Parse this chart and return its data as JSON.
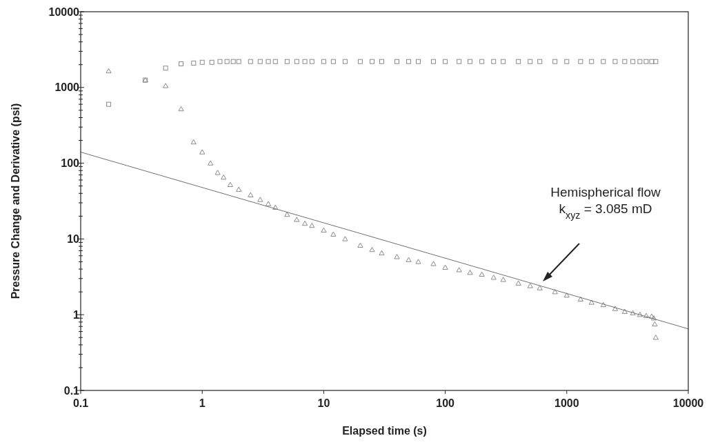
{
  "chart_data": {
    "type": "scatter",
    "xlabel": "Elapsed time (s)",
    "ylabel": "Pressure Change and Derivative (psi)",
    "log": "xy",
    "xlim": [
      0.1,
      10000
    ],
    "ylim": [
      0.1,
      10000
    ],
    "xticks": [
      0.1,
      1,
      10,
      100,
      1000,
      10000
    ],
    "yticks": [
      0.1,
      1,
      10,
      100,
      1000,
      10000
    ],
    "grid": false,
    "series": [
      {
        "marker": "square",
        "color": "#8a8a8a",
        "x": [
          0.17,
          0.34,
          0.5,
          0.67,
          0.85,
          1.0,
          1.2,
          1.4,
          1.6,
          1.8,
          2,
          2.5,
          3,
          3.5,
          4,
          5,
          6,
          7,
          8,
          10,
          12,
          15,
          20,
          25,
          30,
          40,
          50,
          60,
          80,
          100,
          130,
          160,
          200,
          250,
          300,
          400,
          500,
          600,
          800,
          1000,
          1300,
          1600,
          2000,
          2500,
          3000,
          3500,
          4000,
          4500,
          5000,
          5400
        ],
        "values": [
          600,
          1250,
          1800,
          2050,
          2100,
          2150,
          2150,
          2200,
          2200,
          2200,
          2200,
          2200,
          2200,
          2200,
          2200,
          2200,
          2200,
          2200,
          2200,
          2200,
          2200,
          2200,
          2200,
          2200,
          2200,
          2200,
          2200,
          2200,
          2200,
          2200,
          2200,
          2200,
          2200,
          2200,
          2200,
          2200,
          2200,
          2200,
          2200,
          2200,
          2200,
          2200,
          2200,
          2200,
          2200,
          2200,
          2200,
          2200,
          2200,
          2200
        ]
      },
      {
        "marker": "triangle",
        "color": "#8a8a8a",
        "x": [
          0.17,
          0.34,
          0.5,
          0.67,
          0.85,
          1.0,
          1.17,
          1.34,
          1.5,
          1.7,
          2,
          2.5,
          3,
          3.5,
          4,
          5,
          6,
          7,
          8,
          10,
          12,
          15,
          20,
          25,
          30,
          40,
          50,
          60,
          80,
          100,
          130,
          160,
          200,
          250,
          300,
          400,
          500,
          600,
          800,
          1000,
          1300,
          1600,
          2000,
          2500,
          3000,
          3500,
          4000,
          4500,
          5000,
          5200,
          5300,
          5400
        ],
        "values": [
          1650,
          1250,
          1050,
          520,
          190,
          140,
          100,
          75,
          65,
          52,
          45,
          38,
          33,
          29,
          26,
          21,
          18,
          16,
          15,
          13,
          11.5,
          10,
          8.2,
          7.2,
          6.5,
          5.8,
          5.3,
          5,
          4.7,
          4.2,
          3.9,
          3.6,
          3.4,
          3.1,
          2.9,
          2.6,
          2.4,
          2.25,
          2,
          1.8,
          1.6,
          1.45,
          1.35,
          1.2,
          1.1,
          1.05,
          1.0,
          0.97,
          0.95,
          0.9,
          0.75,
          0.5
        ]
      },
      {
        "type": "line",
        "color": "#707070",
        "x": [
          0.1,
          10000
        ],
        "values": [
          140,
          0.65
        ]
      }
    ],
    "annotations": [
      "Hemispherical flow\nk$_{xyz}$ = 3.085 mD"
    ]
  }
}
